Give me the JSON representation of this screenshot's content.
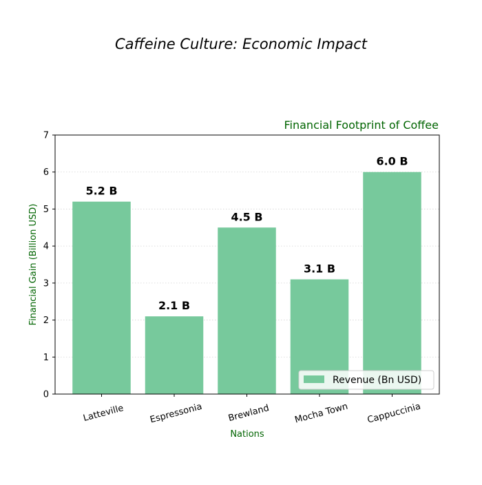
{
  "figure_title": "Caffeine Culture: Economic Impact",
  "chart_data": {
    "type": "bar",
    "title": "Financial Footprint of Coffee",
    "xlabel": "Nations",
    "ylabel": "Financial Gain (Billion USD)",
    "categories": [
      "Latteville",
      "Espressonia",
      "Brewland",
      "Mocha Town",
      "Cappuccinia"
    ],
    "series": [
      {
        "name": "Revenue (Bn USD)",
        "values": [
          5.2,
          2.1,
          4.5,
          3.1,
          6.0
        ]
      }
    ],
    "data_labels": [
      "5.2 B",
      "2.1 B",
      "4.5 B",
      "3.1 B",
      "6.0 B"
    ],
    "ylim": [
      0,
      7
    ],
    "yticks": [
      "0",
      "1",
      "2",
      "3",
      "4",
      "5",
      "6",
      "7"
    ],
    "grid": "horizontal dotted",
    "legend_position": "bottom-right",
    "colors": {
      "bar": "#77c99c",
      "axis_label": "#006400",
      "title": "#006400",
      "grid": "#d3d3d3"
    }
  }
}
